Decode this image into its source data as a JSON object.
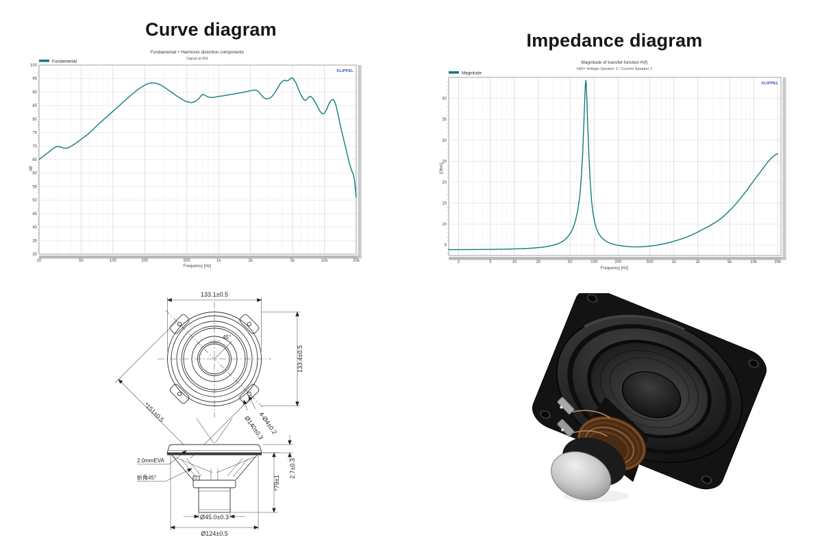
{
  "headings": {
    "left": "Curve diagram",
    "right": "Impedance diagram"
  },
  "chart_data": [
    {
      "type": "line",
      "title": "Fundamental + Harmonic distortion components",
      "subtitle": "Signal at IN1",
      "watermark": "KLIPPEL",
      "xlabel": "Frequency [Hz]",
      "ylabel": "dB",
      "x_scale": "log",
      "grid": true,
      "legend_position": "top-left",
      "xlim": [
        20,
        20000
      ],
      "ylim": [
        30,
        100
      ],
      "yticks": [
        30,
        35,
        40,
        45,
        50,
        55,
        60,
        65,
        70,
        75,
        80,
        85,
        90,
        95,
        100
      ],
      "xticks": [
        [
          20,
          "20"
        ],
        [
          50,
          "50"
        ],
        [
          100,
          "100"
        ],
        [
          200,
          "200"
        ],
        [
          500,
          "500"
        ],
        [
          1000,
          "1k"
        ],
        [
          2000,
          "2k"
        ],
        [
          5000,
          "5k"
        ],
        [
          10000,
          "10k"
        ],
        [
          20000,
          "20k"
        ]
      ],
      "legend": [
        {
          "label": "Fundamental",
          "color": "#0f7b78"
        }
      ],
      "series": [
        {
          "name": "Fundamental",
          "color": "#0f7b78",
          "points": [
            [
              20,
              65
            ],
            [
              22,
              66.3
            ],
            [
              24,
              67.4
            ],
            [
              26,
              68.5
            ],
            [
              28,
              69.5
            ],
            [
              30,
              69.9
            ],
            [
              32,
              69.6
            ],
            [
              34,
              69.3
            ],
            [
              36,
              69.2
            ],
            [
              38,
              69.4
            ],
            [
              40,
              69.9
            ],
            [
              44,
              70.9
            ],
            [
              48,
              72
            ],
            [
              52,
              73
            ],
            [
              58,
              74.4
            ],
            [
              65,
              76.2
            ],
            [
              72,
              77.9
            ],
            [
              80,
              79.5
            ],
            [
              90,
              81.3
            ],
            [
              100,
              82.9
            ],
            [
              115,
              85
            ],
            [
              130,
              86.9
            ],
            [
              150,
              89
            ],
            [
              170,
              90.8
            ],
            [
              190,
              92.1
            ],
            [
              210,
              93
            ],
            [
              230,
              93.4
            ],
            [
              255,
              93.3
            ],
            [
              285,
              92.6
            ],
            [
              320,
              91.3
            ],
            [
              360,
              89.9
            ],
            [
              400,
              88.6
            ],
            [
              450,
              87.3
            ],
            [
              500,
              86.4
            ],
            [
              550,
              86.1
            ],
            [
              600,
              86.5
            ],
            [
              650,
              87.6
            ],
            [
              690,
              88.9
            ],
            [
              720,
              89.1
            ],
            [
              750,
              88.7
            ],
            [
              790,
              88.2
            ],
            [
              850,
              88
            ],
            [
              920,
              88.1
            ],
            [
              1000,
              88.4
            ],
            [
              1100,
              88.6
            ],
            [
              1250,
              89
            ],
            [
              1400,
              89.3
            ],
            [
              1600,
              89.7
            ],
            [
              1800,
              90.1
            ],
            [
              2000,
              90.5
            ],
            [
              2200,
              90.8
            ],
            [
              2350,
              90.4
            ],
            [
              2500,
              89.2
            ],
            [
              2650,
              88
            ],
            [
              2800,
              87.5
            ],
            [
              3000,
              87.6
            ],
            [
              3200,
              88.4
            ],
            [
              3500,
              90.5
            ],
            [
              3800,
              93
            ],
            [
              4000,
              94
            ],
            [
              4200,
              94.4
            ],
            [
              4400,
              94.1
            ],
            [
              4600,
              94.4
            ],
            [
              4900,
              95.3
            ],
            [
              5100,
              94.9
            ],
            [
              5400,
              93.3
            ],
            [
              5700,
              91
            ],
            [
              6000,
              89
            ],
            [
              6300,
              87.5
            ],
            [
              6600,
              86.9
            ],
            [
              6900,
              87.5
            ],
            [
              7200,
              88.4
            ],
            [
              7500,
              88.3
            ],
            [
              7800,
              87.6
            ],
            [
              8200,
              86.2
            ],
            [
              8700,
              84.3
            ],
            [
              9200,
              82.6
            ],
            [
              9600,
              81.9
            ],
            [
              10000,
              82.2
            ],
            [
              10500,
              83.5
            ],
            [
              11000,
              85.5
            ],
            [
              11500,
              86.9
            ],
            [
              12000,
              87.3
            ],
            [
              12400,
              86.8
            ],
            [
              12900,
              85
            ],
            [
              13500,
              81.5
            ],
            [
              14200,
              77.5
            ],
            [
              15000,
              73.5
            ],
            [
              16000,
              69
            ],
            [
              17000,
              64.5
            ],
            [
              17800,
              61.8
            ],
            [
              18400,
              60.3
            ],
            [
              18900,
              59.3
            ],
            [
              19300,
              57
            ],
            [
              19700,
              53.8
            ],
            [
              20000,
              51
            ]
          ]
        }
      ]
    },
    {
      "type": "line",
      "title": "Magnitude of transfer function H(f)",
      "subtitle": "H(f)= Voltage Speaker 1 / Current Speaker 1",
      "watermark": "KLIPPEL",
      "xlabel": "Frequency [Hz]",
      "ylabel": "[Ohm]",
      "x_scale": "log",
      "grid": true,
      "legend_position": "top-left",
      "xlim": [
        1.5,
        22000
      ],
      "ylim": [
        2.5,
        45
      ],
      "yticks": [
        5,
        10,
        15,
        20,
        25,
        30,
        35,
        40
      ],
      "xticks": [
        [
          2,
          "2"
        ],
        [
          5,
          "5"
        ],
        [
          10,
          "10"
        ],
        [
          20,
          "20"
        ],
        [
          50,
          "50"
        ],
        [
          100,
          "100"
        ],
        [
          200,
          "200"
        ],
        [
          500,
          "500"
        ],
        [
          1000,
          "1k"
        ],
        [
          2000,
          "2k"
        ],
        [
          5000,
          "5k"
        ],
        [
          10000,
          "10k"
        ],
        [
          20000,
          "20k"
        ]
      ],
      "legend": [
        {
          "label": "Magnitude",
          "color": "#0f7b78"
        }
      ],
      "series": [
        {
          "name": "Magnitude",
          "color": "#0f7b78",
          "points": [
            [
              1.5,
              3.9
            ],
            [
              2,
              3.9
            ],
            [
              3,
              3.92
            ],
            [
              4,
              3.94
            ],
            [
              5,
              3.96
            ],
            [
              7,
              4
            ],
            [
              9,
              4.05
            ],
            [
              12,
              4.12
            ],
            [
              15,
              4.2
            ],
            [
              18,
              4.3
            ],
            [
              22,
              4.45
            ],
            [
              26,
              4.65
            ],
            [
              30,
              4.9
            ],
            [
              34,
              5.2
            ],
            [
              38,
              5.6
            ],
            [
              42,
              6.1
            ],
            [
              46,
              6.8
            ],
            [
              50,
              7.7
            ],
            [
              54,
              8.9
            ],
            [
              58,
              10.6
            ],
            [
              62,
              13
            ],
            [
              66,
              16.5
            ],
            [
              69,
              21
            ],
            [
              72,
              27
            ],
            [
              74,
              33
            ],
            [
              76,
              39
            ],
            [
              77.5,
              43
            ],
            [
              78.5,
              44.3
            ],
            [
              79.5,
              43.5
            ],
            [
              81,
              40
            ],
            [
              83,
              34
            ],
            [
              86,
              26.5
            ],
            [
              89,
              20.5
            ],
            [
              93,
              15.5
            ],
            [
              97,
              12.5
            ],
            [
              102,
              10.3
            ],
            [
              108,
              8.7
            ],
            [
              115,
              7.6
            ],
            [
              125,
              6.7
            ],
            [
              140,
              5.95
            ],
            [
              160,
              5.4
            ],
            [
              180,
              5.1
            ],
            [
              200,
              4.92
            ],
            [
              230,
              4.75
            ],
            [
              260,
              4.65
            ],
            [
              300,
              4.58
            ],
            [
              350,
              4.56
            ],
            [
              400,
              4.6
            ],
            [
              460,
              4.68
            ],
            [
              530,
              4.8
            ],
            [
              600,
              4.95
            ],
            [
              700,
              5.18
            ],
            [
              800,
              5.42
            ],
            [
              900,
              5.65
            ],
            [
              1000,
              5.9
            ],
            [
              1200,
              6.35
            ],
            [
              1400,
              6.8
            ],
            [
              1700,
              7.45
            ],
            [
              2000,
              8.1
            ],
            [
              2200,
              8.55
            ],
            [
              2400,
              8.9
            ],
            [
              2700,
              9.4
            ],
            [
              3000,
              9.9
            ],
            [
              3500,
              10.7
            ],
            [
              4000,
              11.5
            ],
            [
              4500,
              12.35
            ],
            [
              5000,
              13.2
            ],
            [
              5700,
              14.3
            ],
            [
              6500,
              15.6
            ],
            [
              7300,
              16.8
            ],
            [
              8200,
              18
            ],
            [
              9000,
              19.1
            ],
            [
              10000,
              20.3
            ],
            [
              11000,
              21.4
            ],
            [
              12000,
              22.3
            ],
            [
              13000,
              23.2
            ],
            [
              14000,
              24
            ],
            [
              15000,
              24.75
            ],
            [
              16000,
              25.35
            ],
            [
              17000,
              25.9
            ],
            [
              18000,
              26.3
            ],
            [
              19000,
              26.6
            ],
            [
              20000,
              26.8
            ]
          ]
        }
      ]
    }
  ],
  "drawing": {
    "front": {
      "width": "133.1±0.5",
      "height": "133.4±0.5",
      "diagonal": "*151±0.5",
      "angle": "45°",
      "bolt_circle": "Ø140±0.3",
      "holes": "4-Ø4±0.2"
    },
    "side": {
      "gasket": "2.0mmEVA",
      "chamfer": "折角45°",
      "depth": "*79±1",
      "gasket_thickness": "2.7±0.3",
      "magnet_diameter": "Ø45.0±0.3",
      "frame_diameter": "Ø124±0.5"
    }
  }
}
